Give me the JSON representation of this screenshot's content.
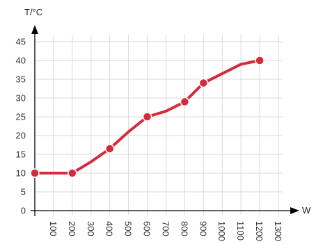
{
  "chart_data": {
    "type": "line",
    "xlabel": "W",
    "ylabel": "T/°C",
    "xlim": [
      0,
      1300
    ],
    "ylim": [
      0,
      45
    ],
    "x_ticks": [
      "100",
      "200",
      "300",
      "400",
      "500",
      "600",
      "700",
      "800",
      "900",
      "1000",
      "1100",
      "1200",
      "1300"
    ],
    "y_ticks": [
      "0",
      "5",
      "10",
      "15",
      "20",
      "25",
      "30",
      "35",
      "40",
      "45"
    ],
    "grid": true,
    "line_color": "#d42a3c",
    "marker_face_color": "#ffffff",
    "series": [
      {
        "x": [
          0,
          100,
          200,
          300,
          400,
          500,
          600,
          700,
          800,
          900,
          1000,
          1100,
          1200
        ],
        "y": [
          10,
          10,
          10,
          13,
          16.5,
          21,
          25,
          26.5,
          29,
          34,
          36.5,
          39,
          40
        ],
        "markers_at": [
          0,
          200,
          400,
          600,
          800,
          900,
          1200
        ]
      }
    ]
  }
}
